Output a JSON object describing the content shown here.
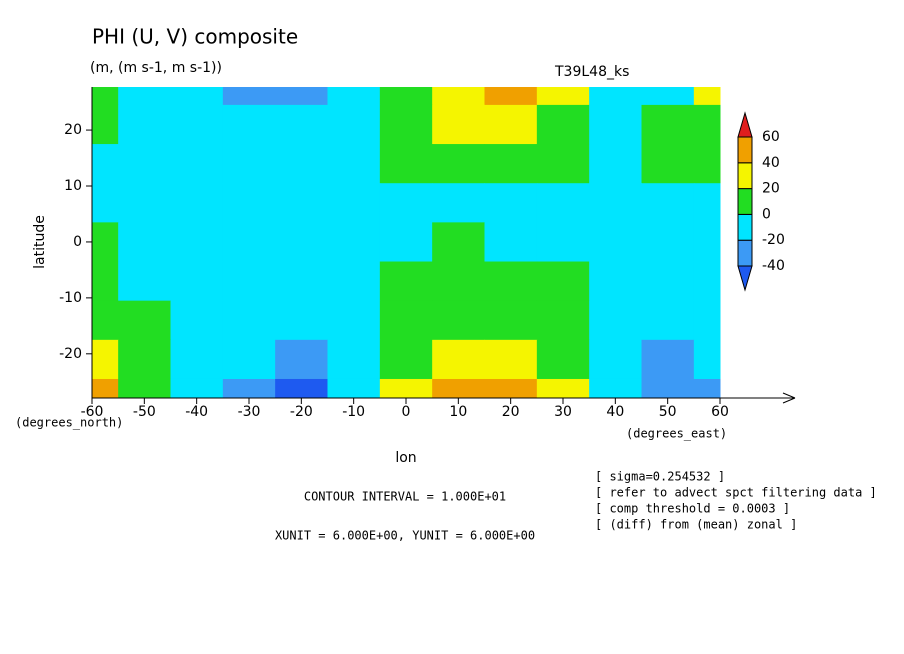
{
  "chart_data": {
    "type": "contour",
    "title": "PHI (U, V) composite",
    "subtitle": "(m, (m s-1, m s-1))",
    "run_label": "T39L48_ks",
    "x_label": "lon",
    "y_label": "latitude",
    "x_units": "(degrees_east)",
    "y_units": "(degrees_north)",
    "xlim": [
      -60,
      60
    ],
    "ylim": [
      -27.9,
      27.7
    ],
    "xticks": [
      -60,
      -50,
      -40,
      -30,
      -20,
      -10,
      0,
      10,
      20,
      30,
      40,
      50,
      60
    ],
    "yticks": [
      -20,
      -10,
      0,
      10,
      20
    ],
    "x": [
      -60,
      -50,
      -40,
      -30,
      -20,
      -10,
      0,
      10,
      20,
      30,
      40,
      50,
      60
    ],
    "y": [
      28,
      21,
      14,
      7,
      0,
      -7,
      -14,
      -21,
      -28
    ],
    "z": [
      [
        10,
        -5,
        -10,
        -25,
        -30,
        -10,
        5,
        30,
        45,
        20,
        -5,
        -5,
        25
      ],
      [
        5,
        -5,
        -10,
        -15,
        -15,
        -5,
        10,
        25,
        30,
        15,
        -5,
        10,
        15
      ],
      [
        -5,
        -10,
        -10,
        -10,
        -10,
        -5,
        5,
        10,
        10,
        5,
        -5,
        5,
        10
      ],
      [
        -5,
        -10,
        -10,
        -10,
        -10,
        -5,
        -5,
        -5,
        -5,
        -5,
        -5,
        -5,
        -5
      ],
      [
        5,
        -10,
        -10,
        -10,
        -10,
        -5,
        -5,
        5,
        -5,
        -5,
        -5,
        -10,
        -10
      ],
      [
        0,
        -5,
        -10,
        -10,
        -10,
        -5,
        5,
        10,
        5,
        5,
        -5,
        -10,
        -10
      ],
      [
        10,
        0,
        -10,
        -10,
        -10,
        -5,
        10,
        15,
        15,
        10,
        -5,
        -10,
        -10
      ],
      [
        20,
        5,
        -10,
        -20,
        -25,
        -10,
        15,
        30,
        30,
        15,
        -10,
        -25,
        -15
      ],
      [
        40,
        10,
        -15,
        -40,
        -45,
        -15,
        25,
        45,
        45,
        20,
        -10,
        -40,
        -25
      ]
    ],
    "colorbar": {
      "levels": [
        -40,
        -20,
        0,
        20,
        40,
        60
      ],
      "colors": [
        "#1e5af0",
        "#3c9af5",
        "#00e5ff",
        "#22dd22",
        "#f5f500",
        "#f0a000",
        "#e01e1e"
      ]
    },
    "contour_interval": "CONTOUR INTERVAL = 1.000E+01",
    "vector_units": "XUNIT = 6.000E+00, YUNIT = 6.000E+00",
    "notes": [
      "[ sigma=0.254532 ]",
      "[ refer to advect spct filtering data ]",
      "[ comp threshold = 0.0003 ]",
      "[ (diff) from (mean) zonal ]"
    ]
  }
}
